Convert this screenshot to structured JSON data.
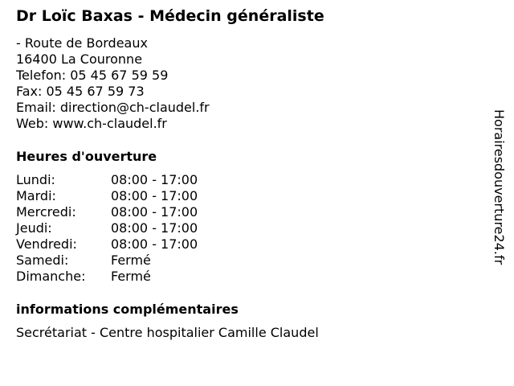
{
  "title": "Dr Loïc Baxas - Médecin généraliste",
  "address": [
    "- Route de Bordeaux",
    "16400 La Couronne",
    "Telefon: 05 45 67 59 59",
    "Fax: 05 45 67 59 73",
    "Email: direction@ch-claudel.fr",
    "Web: www.ch-claudel.fr"
  ],
  "hours_title": "Heures d'ouverture",
  "hours": [
    {
      "day": "Lundi:",
      "time": "08:00 - 17:00"
    },
    {
      "day": "Mardi:",
      "time": "08:00 - 17:00"
    },
    {
      "day": "Mercredi:",
      "time": "08:00 - 17:00"
    },
    {
      "day": "Jeudi:",
      "time": "08:00 - 17:00"
    },
    {
      "day": "Vendredi:",
      "time": "08:00 - 17:00"
    },
    {
      "day": "Samedi:",
      "time": "Fermé"
    },
    {
      "day": "Dimanche:",
      "time": "Fermé"
    }
  ],
  "info_title": "informations complémentaires",
  "info": "Secrétariat - Centre hospitalier Camille Claudel",
  "watermark": "Horairesdouverture24.fr"
}
